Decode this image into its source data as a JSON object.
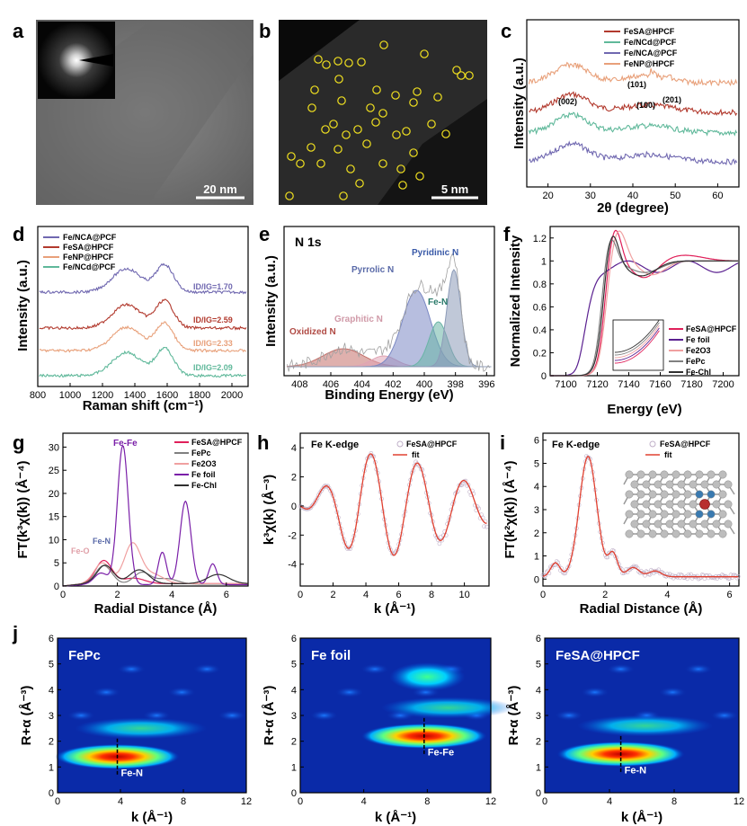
{
  "panels": {
    "a": {
      "label": "a",
      "scale_bar": "20 nm"
    },
    "b": {
      "label": "b",
      "scale_bar": "5 nm"
    },
    "c": {
      "label": "c",
      "xlabel": "2θ (degree)",
      "ylabel": "Intensity (a.u.)",
      "legend": [
        "FeSA@HPCF",
        "Fe/NCd@PCF",
        "Fe/NCA@PCF",
        "FeNP@HPCF"
      ],
      "peaks": [
        "(101)",
        "(002)",
        "(100)",
        "(201)"
      ]
    },
    "d": {
      "label": "d",
      "xlabel": "Raman shift (cm⁻¹)",
      "ylabel": "Intensity (a.u.)",
      "legend": [
        "Fe/NCA@PCF",
        "FeSA@HPCF",
        "FeNP@HPCF",
        "Fe/NCd@PCF"
      ],
      "ratios": [
        "ID/IG=1.70",
        "ID/IG=2.59",
        "ID/IG=2.33",
        "ID/IG=2.09"
      ]
    },
    "e": {
      "label": "e",
      "title": "N 1s",
      "xlabel": "Binding Energy (eV)",
      "ylabel": "Intensity (a.u.)",
      "species": [
        "Pyridinic N",
        "Pyrrolic N",
        "Fe-N",
        "Graphitic N",
        "Oxidized N"
      ]
    },
    "f": {
      "label": "f",
      "xlabel": "Energy (eV)",
      "ylabel": "Normalized Intensity",
      "legend": [
        "FeSA@HPCF",
        "Fe foil",
        "Fe2O3",
        "FePc",
        "Fe-Chl"
      ]
    },
    "g": {
      "label": "g",
      "xlabel": "Radial Distance (Å)",
      "ylabel": "FT(k³χ(k)) (Å⁻⁴)",
      "legend": [
        "FeSA@HPCF",
        "FePc",
        "Fe2O3",
        "Fe foil",
        "Fe-Chl"
      ],
      "annotations": [
        "Fe-Fe",
        "Fe-N",
        "Fe-O"
      ]
    },
    "h": {
      "label": "h",
      "title": "Fe K-edge",
      "xlabel": "k (Å⁻¹)",
      "ylabel": "k³χ(k) (Å⁻³)",
      "legend": [
        "FeSA@HPCF",
        "fit"
      ]
    },
    "i": {
      "label": "i",
      "title": "Fe K-edge",
      "xlabel": "Radial Distance (Å)",
      "ylabel": "FT(k²χ(k)) (Å⁻⁴)",
      "legend": [
        "FeSA@HPCF",
        "fit"
      ]
    },
    "j": {
      "label": "j",
      "xlabel": "k (Å⁻¹)",
      "ylabel": "R+α (Å⁻³)",
      "maps": [
        {
          "title": "FePc",
          "bond": "Fe-N"
        },
        {
          "title": "Fe foil",
          "bond": "Fe-Fe"
        },
        {
          "title": "FeSA@HPCF",
          "bond": "Fe-N"
        }
      ]
    }
  },
  "chart_data": [
    {
      "type": "line",
      "panel": "c",
      "xlim": [
        15,
        65
      ],
      "xticks": [
        20,
        30,
        40,
        50,
        60
      ],
      "series": [
        {
          "name": "FeSA@HPCF",
          "color": "#b23a2e"
        },
        {
          "name": "Fe/NCd@PCF",
          "color": "#5fb89a"
        },
        {
          "name": "Fe/NCA@PCF",
          "color": "#7068b0"
        },
        {
          "name": "FeNP@HPCF",
          "color": "#e8a07a"
        }
      ]
    },
    {
      "type": "line",
      "panel": "d",
      "xlim": [
        800,
        2100
      ],
      "xticks": [
        800,
        1000,
        1200,
        1400,
        1600,
        1800,
        2000
      ],
      "series": [
        {
          "name": "Fe/NCA@PCF",
          "color": "#7068b0",
          "ratio": 1.7
        },
        {
          "name": "FeSA@HPCF",
          "color": "#b23a2e",
          "ratio": 2.59
        },
        {
          "name": "FeNP@HPCF",
          "color": "#e8a07a",
          "ratio": 2.33
        },
        {
          "name": "Fe/NCd@PCF",
          "color": "#5fb89a",
          "ratio": 2.09
        }
      ]
    },
    {
      "type": "area",
      "panel": "e",
      "xlim": [
        409,
        395.5
      ],
      "xticks": [
        408,
        406,
        404,
        402,
        400,
        398,
        396
      ],
      "components": [
        {
          "name": "Oxidized N",
          "center": 405.2,
          "color": "#c4706a"
        },
        {
          "name": "Graphitic N",
          "center": 402.6,
          "color": "#e0a4b4"
        },
        {
          "name": "Pyrrolic N",
          "center": 400.5,
          "color": "#7b89c4"
        },
        {
          "name": "Fe-N",
          "center": 399.1,
          "color": "#6ab4a6"
        },
        {
          "name": "Pyridinic N",
          "center": 398.1,
          "color": "#8c9bb8"
        }
      ]
    },
    {
      "type": "line",
      "panel": "f",
      "xlim": [
        7090,
        7210
      ],
      "ylim": [
        0,
        1.3
      ],
      "xticks": [
        7100,
        7120,
        7140,
        7160,
        7180,
        7200
      ],
      "yticks": [
        0,
        0.2,
        0.4,
        0.6,
        0.8,
        1.0,
        1.2
      ],
      "series": [
        {
          "name": "FeSA@HPCF",
          "color": "#e0205a"
        },
        {
          "name": "Fe foil",
          "color": "#5a2090"
        },
        {
          "name": "Fe2O3",
          "color": "#f0a0a0"
        },
        {
          "name": "FePc",
          "color": "#808080"
        },
        {
          "name": "Fe-Chl",
          "color": "#303030"
        }
      ]
    },
    {
      "type": "line",
      "panel": "g",
      "xlim": [
        0,
        6.8
      ],
      "ylim": [
        0,
        33
      ],
      "xticks": [
        0,
        2,
        4,
        6
      ],
      "yticks": [
        0,
        5,
        10,
        15,
        20,
        25,
        30
      ],
      "series": [
        {
          "name": "FeSA@HPCF",
          "color": "#e0205a"
        },
        {
          "name": "FePc",
          "color": "#808080"
        },
        {
          "name": "Fe2O3",
          "color": "#f0a0a0"
        },
        {
          "name": "Fe foil",
          "color": "#7a1fa8"
        },
        {
          "name": "Fe-Chl",
          "color": "#303030"
        }
      ]
    },
    {
      "type": "line",
      "panel": "h",
      "xlim": [
        0,
        11.5
      ],
      "ylim": [
        -5.5,
        5
      ],
      "xticks": [
        0,
        2,
        4,
        6,
        8,
        10
      ],
      "yticks": [
        -4,
        -2,
        0,
        2,
        4
      ],
      "series": [
        {
          "name": "FeSA@HPCF",
          "color": "#c0b0c8"
        },
        {
          "name": "fit",
          "color": "#e04030"
        }
      ]
    },
    {
      "type": "line",
      "panel": "i",
      "xlim": [
        0,
        6.3
      ],
      "ylim": [
        -0.3,
        6.3
      ],
      "xticks": [
        0,
        2,
        4,
        6
      ],
      "yticks": [
        0,
        1,
        2,
        3,
        4,
        5,
        6
      ],
      "series": [
        {
          "name": "FeSA@HPCF",
          "color": "#c0b0c8"
        },
        {
          "name": "fit",
          "color": "#e04030"
        }
      ]
    },
    {
      "type": "heatmap",
      "panel": "j",
      "xlim": [
        0,
        12
      ],
      "ylim": [
        0,
        6
      ],
      "xticks": [
        0,
        4,
        8,
        12
      ],
      "yticks": [
        0,
        1,
        2,
        3,
        4,
        5,
        6
      ],
      "maps": [
        {
          "name": "FePc",
          "peak_k": 3.8,
          "peak_R": 1.4
        },
        {
          "name": "Fe foil",
          "peak_k": 7.8,
          "peak_R": 2.2
        },
        {
          "name": "FeSA@HPCF",
          "peak_k": 4.7,
          "peak_R": 1.5
        }
      ]
    }
  ]
}
